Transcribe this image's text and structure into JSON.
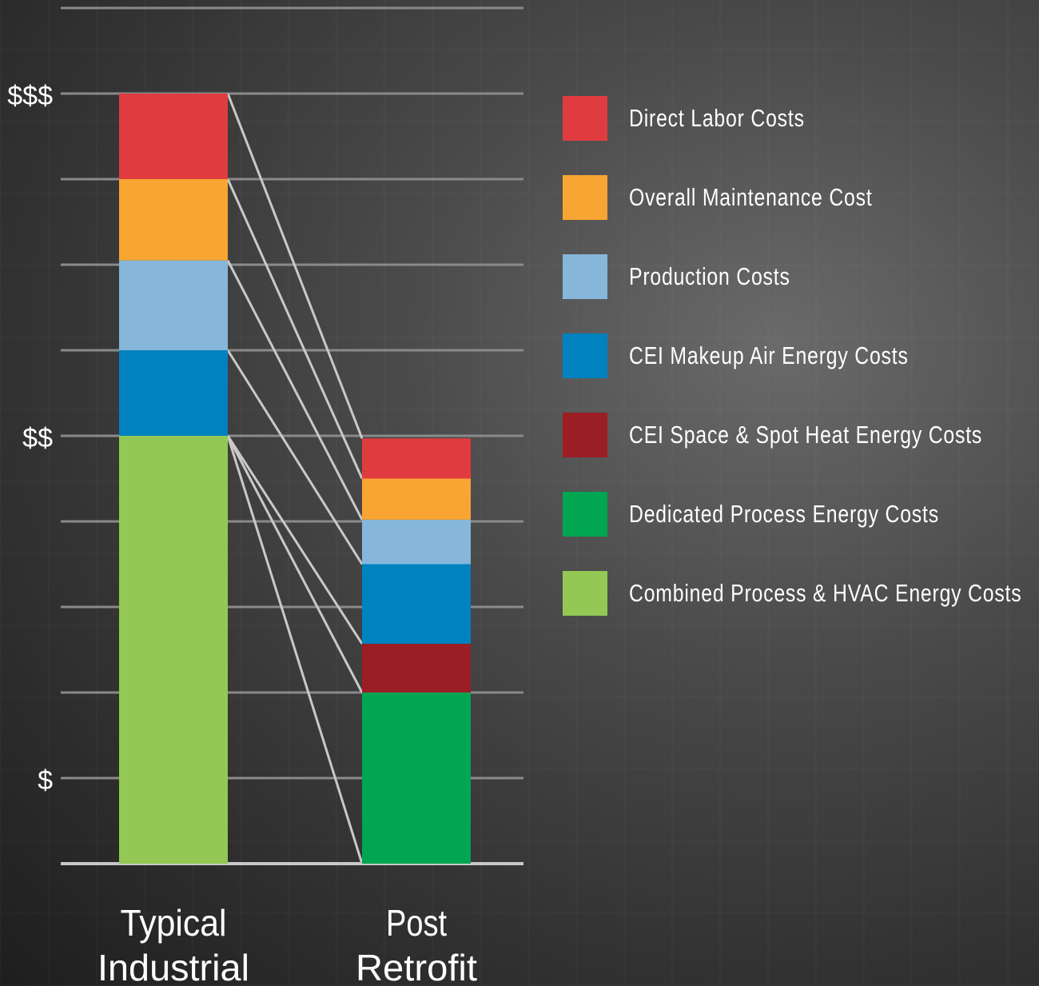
{
  "chart_data": {
    "type": "bar",
    "stacked": true,
    "categories": [
      "Typical Industrial",
      "Post Retrofit"
    ],
    "y_tick_labels": [
      {
        "value": 1,
        "label": "$"
      },
      {
        "value": 5,
        "label": "$$"
      },
      {
        "value": 9,
        "label": "$$$"
      }
    ],
    "ylim": [
      0,
      10
    ],
    "grid": true,
    "legend_position": "right",
    "series": [
      {
        "name": "Combined Process & HVAC Energy Costs",
        "color": "#92c853",
        "values": [
          5.0,
          0
        ]
      },
      {
        "name": "Dedicated Process Energy Costs",
        "color": "#00a651",
        "values": [
          0,
          2.0
        ]
      },
      {
        "name": "CEI Space & Spot Heat Energy Costs",
        "color": "#9b1e24",
        "values": [
          0,
          0.57
        ]
      },
      {
        "name": "CEI Makeup Air Energy Costs",
        "color": "#0082c0",
        "values": [
          1.0,
          0.93
        ]
      },
      {
        "name": "Production Costs",
        "color": "#86b7db",
        "values": [
          1.05,
          0.52
        ]
      },
      {
        "name": "Overall Maintenance Cost",
        "color": "#f9a533",
        "values": [
          0.95,
          0.48
        ]
      },
      {
        "name": "Direct Labor Costs",
        "color": "#e03c3f",
        "values": [
          1.0,
          0.47
        ]
      }
    ]
  },
  "legend": [
    {
      "label": "Direct Labor Costs",
      "color": "#e03c3f"
    },
    {
      "label": "Overall Maintenance Cost",
      "color": "#f9a533"
    },
    {
      "label": "Production Costs",
      "color": "#86b7db"
    },
    {
      "label": "CEI Makeup Air Energy Costs",
      "color": "#0082c0"
    },
    {
      "label": "CEI Space & Spot Heat Energy Costs",
      "color": "#9b1e24"
    },
    {
      "label": "Dedicated Process Energy Costs",
      "color": "#00a651"
    },
    {
      "label": "Combined Process & HVAC Energy Costs",
      "color": "#92c853"
    }
  ],
  "category_labels": [
    [
      "Typical",
      "Industrial"
    ],
    [
      "Post",
      "Retrofit"
    ]
  ]
}
